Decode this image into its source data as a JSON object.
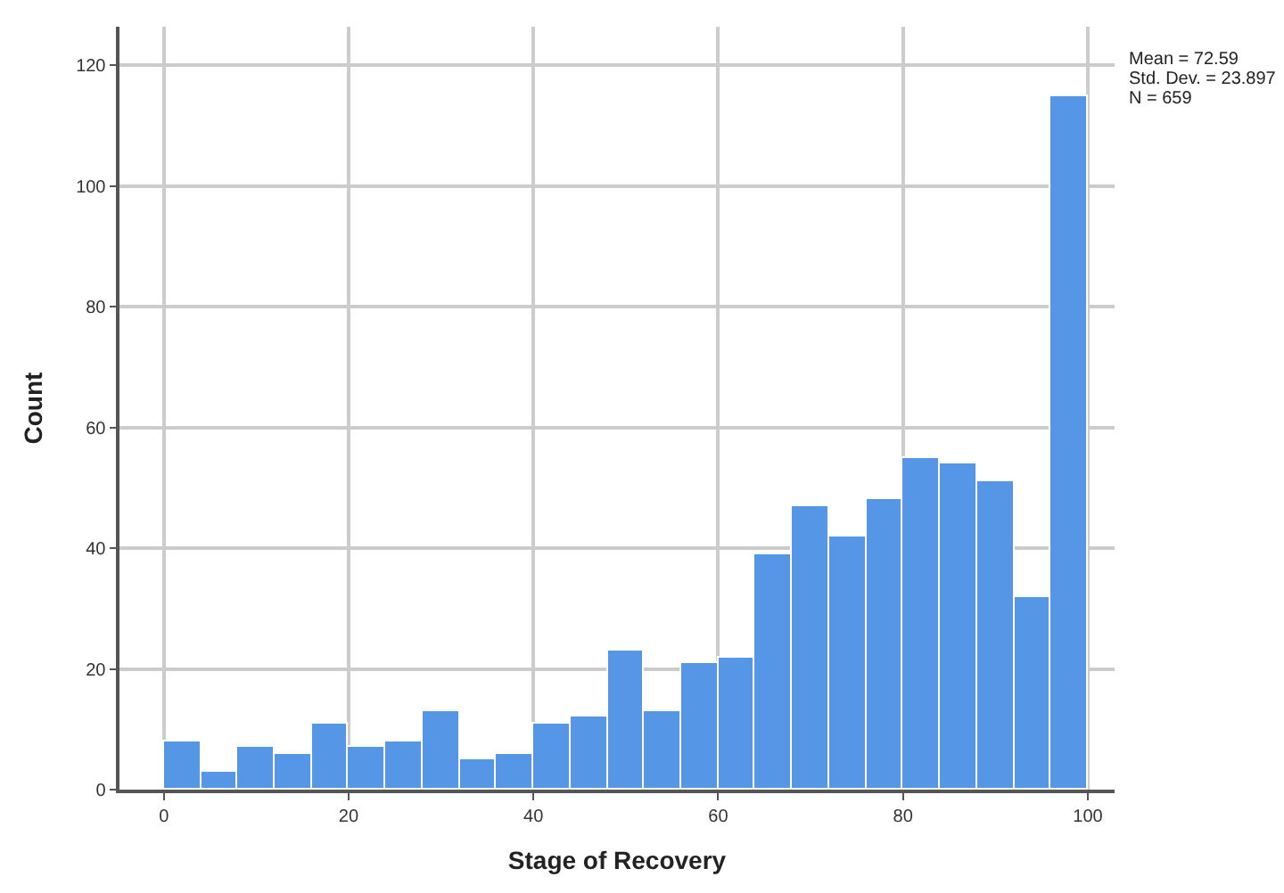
{
  "chart_data": {
    "type": "histogram",
    "xlabel": "Stage of Recovery",
    "ylabel": "Count",
    "bins": [
      0,
      4,
      8,
      12,
      16,
      20,
      24,
      28,
      32,
      36,
      40,
      44,
      48,
      52,
      56,
      60,
      64,
      68,
      72,
      76,
      80,
      84,
      88,
      92,
      96,
      100
    ],
    "values": [
      8,
      3,
      7,
      6,
      11,
      7,
      8,
      13,
      5,
      6,
      11,
      12,
      23,
      13,
      21,
      22,
      39,
      47,
      42,
      48,
      55,
      54,
      51,
      32,
      115
    ],
    "color": "#5596e6",
    "xlim": [
      -4.8,
      102.9
    ],
    "xticks": [
      0,
      20,
      40,
      60,
      80,
      100
    ],
    "ylim": [
      0,
      126.4
    ],
    "yticks": [
      0,
      20,
      40,
      60,
      80,
      100,
      120
    ],
    "grid": true,
    "legend": false,
    "annotations": [
      "Mean = 72.59",
      "Std. Dev. = 23.897",
      "N = 659"
    ]
  }
}
